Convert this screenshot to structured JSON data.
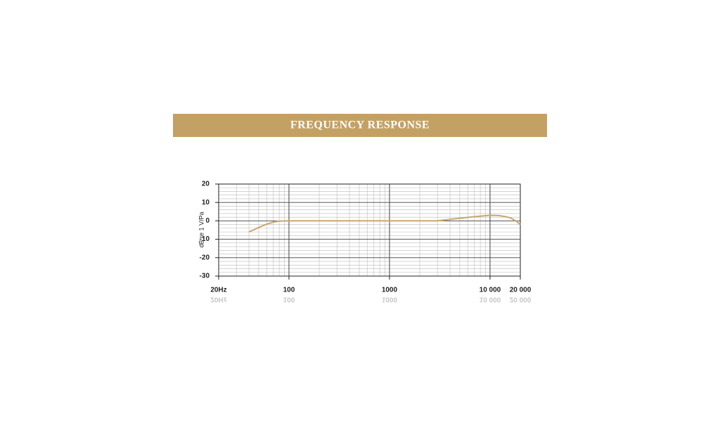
{
  "chart_data": {
    "type": "line",
    "title": "FREQUENCY RESPONSE",
    "y_label": "dB re 1 V/Pa",
    "log_x": true,
    "grid": true,
    "minor_grid": true,
    "xlim": [
      20,
      20000
    ],
    "ylim": [
      -30,
      20
    ],
    "xticks": [
      {
        "value": 20,
        "label": "20Hz"
      },
      100,
      1000,
      {
        "value": 10000,
        "label": "10 000"
      },
      {
        "value": 20000,
        "label": "20 000"
      }
    ],
    "yticks": [
      20,
      10,
      0,
      -10,
      -20,
      -30
    ],
    "series": [
      {
        "color": "#c9a66b",
        "x": [
          40,
          45,
          50,
          60,
          70,
          80,
          100,
          300,
          1000,
          3000,
          4000,
          5000,
          7000,
          10000,
          12000,
          14000,
          16000,
          18000,
          20000
        ],
        "values": [
          -6,
          -4.8,
          -3.6,
          -1.8,
          -0.7,
          -0.1,
          0,
          0,
          0,
          0,
          0.8,
          1.4,
          2.3,
          3,
          2.9,
          2.4,
          1.6,
          0,
          -2
        ]
      }
    ]
  }
}
